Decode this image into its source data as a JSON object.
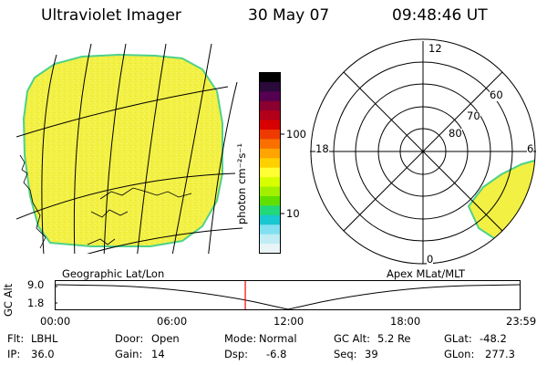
{
  "header": {
    "instrument": "Ultraviolet Imager",
    "date": "30 May 07",
    "time": "09:48:46 UT"
  },
  "colorbar": {
    "unit_label": "photon cm⁻²s⁻¹",
    "ticks": [
      "100",
      "10"
    ],
    "colors": [
      "#000000",
      "#2a0a3a",
      "#550050",
      "#8a0030",
      "#b3001a",
      "#d80000",
      "#ee3a00",
      "#f97000",
      "#ffa400",
      "#ffd000",
      "#ffff33",
      "#d8ff00",
      "#a0f000",
      "#60e000",
      "#22d87a",
      "#19c8d0",
      "#80e0f0",
      "#c0ecf4",
      "#e8f4f6"
    ]
  },
  "map_left": {
    "label": "Geographic Lat/Lon",
    "fill_color": "#f2f043",
    "edge_color": "#4fd18a"
  },
  "map_right": {
    "label": "Apex MLat/MLT",
    "hour_labels": {
      "top": "12",
      "left": "18",
      "right": "6",
      "bottom": "0"
    },
    "lat_labels": [
      "60",
      "70",
      "80"
    ],
    "fill_color": "#f2f043",
    "edge_color": "#4fd18a"
  },
  "altitude_plot": {
    "ylabel": "GC Alt",
    "y_ticks": [
      "9.0",
      "1.8"
    ],
    "x_ticks": [
      "00:00",
      "06:00",
      "12:00",
      "18:00",
      "23:59"
    ],
    "marker_time_hours": 9.81,
    "marker_color": "#ff0000"
  },
  "info": {
    "row1": [
      {
        "label": "Flt:",
        "value": "LBHL"
      },
      {
        "label": "Door:",
        "value": "Open"
      },
      {
        "label": "Mode:",
        "value": "Normal"
      },
      {
        "label": "GC Alt:",
        "value": "5.2 Re"
      },
      {
        "label": "GLat:",
        "value": "-48.2"
      }
    ],
    "row2": [
      {
        "label": "IP:",
        "value": "36.0"
      },
      {
        "label": "Gain:",
        "value": "14"
      },
      {
        "label": "Dsp:",
        "value": "-6.8"
      },
      {
        "label": "Seq:",
        "value": "39"
      },
      {
        "label": "GLon:",
        "value": "277.3"
      }
    ]
  }
}
